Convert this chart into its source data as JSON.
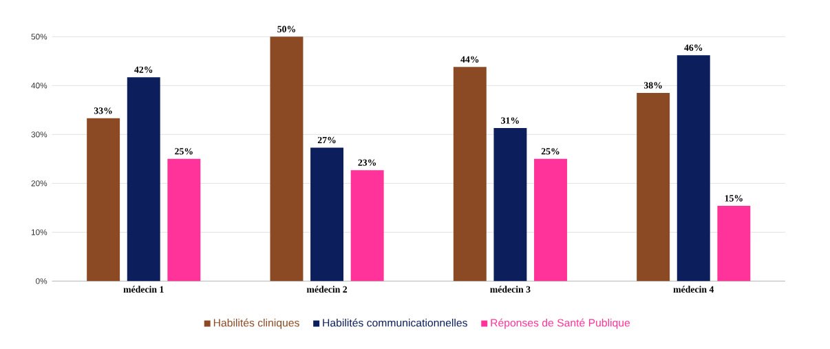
{
  "chart_data": {
    "type": "bar",
    "categories": [
      "médecin 1",
      "médecin 2",
      "médecin 3",
      "médecin 4"
    ],
    "series": [
      {
        "name": "Habilités cliniques",
        "color": "#8b4a23",
        "values": [
          33.3,
          50,
          43.8,
          38.5
        ],
        "value_labels": [
          "33%",
          "50%",
          "44%",
          "38%"
        ]
      },
      {
        "name": "Habilités communicationnelles",
        "color": "#0c1f5c",
        "values": [
          41.7,
          27.3,
          31.3,
          46.2
        ],
        "value_labels": [
          "42%",
          "27%",
          "31%",
          "46%"
        ]
      },
      {
        "name": "Réponses de Santé Publique",
        "color": "#ff3399",
        "values": [
          25,
          22.7,
          25,
          15.4
        ],
        "value_labels": [
          "25%",
          "23%",
          "25%",
          "15%"
        ]
      }
    ],
    "ylim": [
      0,
      50
    ],
    "yticks": [
      {
        "value": 0,
        "label": "0%"
      },
      {
        "value": 10,
        "label": "10%"
      },
      {
        "value": 20,
        "label": "20%"
      },
      {
        "value": 30,
        "label": "30%"
      },
      {
        "value": 40,
        "label": "40%"
      },
      {
        "value": 50,
        "label": "50%"
      }
    ],
    "grid": "y",
    "legend": "bottom"
  }
}
